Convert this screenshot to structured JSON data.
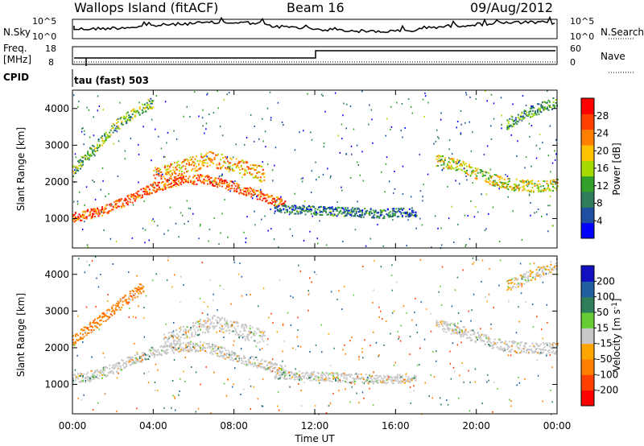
{
  "header": {
    "site": "Wallops Island (fitACF)",
    "beam": "Beam 16",
    "date": "09/Aug/2012"
  },
  "noise_panel": {
    "left_label": "N.Sky",
    "right_label": "N.Search",
    "left_ticks": [
      "10^5",
      "10^0"
    ],
    "right_ticks": [
      "10^5",
      "10^0"
    ]
  },
  "freq_panel": {
    "left_label_1": "Freq.",
    "left_label_2": "[MHz]",
    "right_label": "Nave",
    "left_ticks": [
      "18",
      "8"
    ],
    "right_ticks": [
      "60",
      "0"
    ]
  },
  "cpid": {
    "label": "CPID",
    "text": "tau (fast) 503"
  },
  "colors": {
    "power_scale": [
      "#0000ff",
      "#1f4fa0",
      "#2e7d5b",
      "#33a02c",
      "#a6d900",
      "#ffc000",
      "#ff8000",
      "#ff4000",
      "#ff0000"
    ],
    "velocity_scale": [
      "#1010c0",
      "#2060a0",
      "#2e7d5b",
      "#66cc33",
      "#c8c8c8",
      "#ffa500",
      "#ff8000",
      "#ff4000",
      "#ff0000"
    ]
  },
  "chart_data": [
    {
      "type": "heatmap",
      "name_hint": "power",
      "x": [
        "00:00",
        "04:00",
        "08:00",
        "12:00",
        "16:00",
        "20:00",
        "00:00"
      ],
      "xlabel": "",
      "ylabel": "Slant Range [km]",
      "yticks": [
        1000,
        2000,
        3000,
        4000
      ],
      "ylim": [
        200,
        4500
      ],
      "colorbar": {
        "label": "Power [dB]",
        "ticks": [
          "28",
          "24",
          "20",
          "16",
          "12",
          "8",
          "4"
        ],
        "range": [
          0,
          30
        ]
      },
      "bands": [
        {
          "t0": 0.0,
          "t1": 10.5,
          "r": [
            1050,
            1200,
            1500,
            1850,
            2050,
            2100,
            1900,
            1650,
            1400
          ],
          "width": 260,
          "level": 24
        },
        {
          "t0": 4.0,
          "t1": 9.5,
          "r": [
            2200,
            2400,
            2650,
            2450,
            2200
          ],
          "width": 420,
          "level": 20
        },
        {
          "t0": 0.0,
          "t1": 4.0,
          "r": [
            2300,
            2900,
            3500,
            3900,
            4200
          ],
          "width": 300,
          "level": 12
        },
        {
          "t0": 10.0,
          "t1": 17.0,
          "r": [
            1300,
            1250,
            1200,
            1150,
            1200
          ],
          "width": 250,
          "level": 8
        },
        {
          "t0": 18.0,
          "t1": 24.0,
          "r": [
            2600,
            2450,
            2150,
            1950,
            1900,
            1950
          ],
          "width": 320,
          "level": 16
        },
        {
          "t0": 21.5,
          "t1": 24.0,
          "r": [
            3600,
            3950,
            4200
          ],
          "width": 300,
          "level": 10
        }
      ]
    },
    {
      "type": "heatmap",
      "name_hint": "velocity",
      "x": [
        "00:00",
        "04:00",
        "08:00",
        "12:00",
        "16:00",
        "20:00",
        "00:00"
      ],
      "xlabel": "Time UT",
      "ylabel": "Slant Range [km]",
      "yticks": [
        1000,
        2000,
        3000,
        4000
      ],
      "ylim": [
        200,
        4500
      ],
      "colorbar": {
        "label": "Velocity [m s^-1]",
        "ticks": [
          "200",
          "100",
          "50",
          "15",
          "-15",
          "-50",
          "-100",
          "-200"
        ],
        "range": [
          -250,
          250
        ]
      },
      "bands": [
        {
          "t0": 0.0,
          "t1": 10.5,
          "r": [
            1150,
            1300,
            1600,
            1900,
            2050,
            2050,
            1800,
            1600,
            1400
          ],
          "width": 280,
          "level": 0
        },
        {
          "t0": 4.5,
          "t1": 9.5,
          "r": [
            2200,
            2500,
            2700,
            2500,
            2300
          ],
          "width": 420,
          "level": 0
        },
        {
          "t0": 0.0,
          "t1": 3.5,
          "r": [
            2200,
            2700,
            3200,
            3700
          ],
          "width": 300,
          "level": -60
        },
        {
          "t0": 10.0,
          "t1": 17.0,
          "r": [
            1300,
            1250,
            1200,
            1150,
            1200
          ],
          "width": 250,
          "level": 0
        },
        {
          "t0": 18.0,
          "t1": 24.0,
          "r": [
            2700,
            2400,
            2100,
            2000,
            2000
          ],
          "width": 320,
          "level": 0
        },
        {
          "t0": 21.5,
          "t1": 24.0,
          "r": [
            3700,
            4000,
            4300
          ],
          "width": 300,
          "level": -10
        }
      ]
    }
  ]
}
